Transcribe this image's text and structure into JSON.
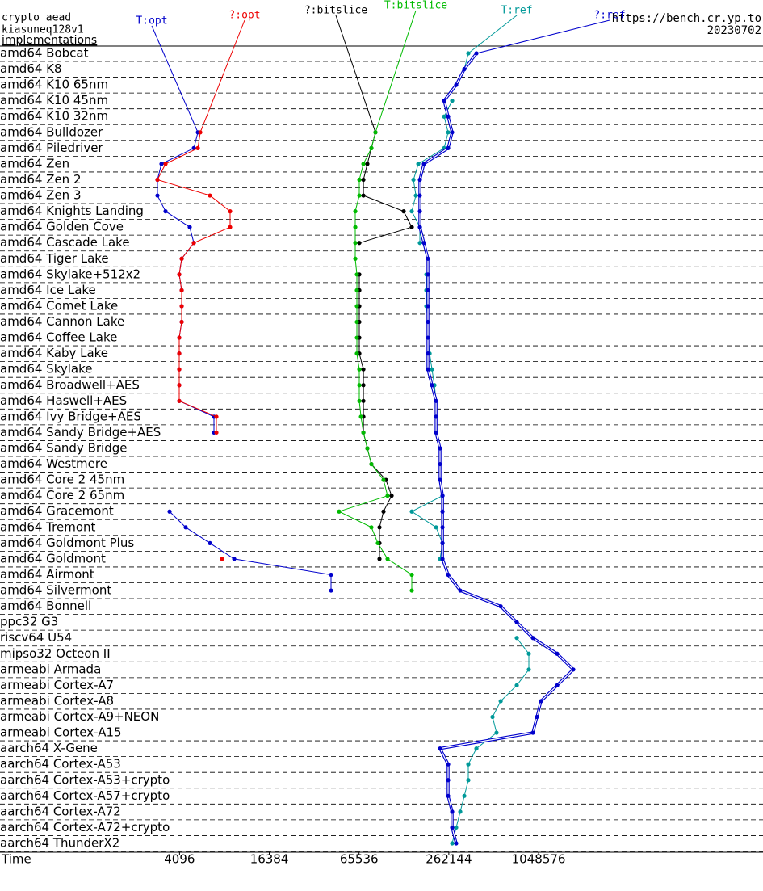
{
  "chart_data": {
    "type": "line",
    "header": [
      "crypto_aead",
      "kiasuneq128v1"
    ],
    "subheader": "implementations",
    "source": "https://bench.cr.yp.to",
    "date": "20230702",
    "x_label": "Time",
    "xscale": "log",
    "xlim": [
      256,
      33554432
    ],
    "xticks": [
      4096,
      16384,
      65536,
      262144,
      1048576
    ],
    "categories": [
      "amd64 Bobcat",
      "amd64 K8",
      "amd64 K10 65nm",
      "amd64 K10 45nm",
      "amd64 K10 32nm",
      "amd64 Bulldozer",
      "amd64 Piledriver",
      "amd64 Zen",
      "amd64 Zen 2",
      "amd64 Zen 3",
      "amd64 Knights Landing",
      "amd64 Golden Cove",
      "amd64 Cascade Lake",
      "amd64 Tiger Lake",
      "amd64 Skylake+512x2",
      "amd64 Ice Lake",
      "amd64 Comet Lake",
      "amd64 Cannon Lake",
      "amd64 Coffee Lake",
      "amd64 Kaby Lake",
      "amd64 Skylake",
      "amd64 Broadwell+AES",
      "amd64 Haswell+AES",
      "amd64 Ivy Bridge+AES",
      "amd64 Sandy Bridge+AES",
      "amd64 Sandy Bridge",
      "amd64 Westmere",
      "amd64 Core 2 45nm",
      "amd64 Core 2 65nm",
      "amd64 Gracemont",
      "amd64 Tremont",
      "amd64 Goldmont Plus",
      "amd64 Goldmont",
      "amd64 Airmont",
      "amd64 Silvermont",
      "amd64 Bonnell",
      "ppc32 G3",
      "riscv64 U54",
      "mipso32 Octeon II",
      "armeabi Armada",
      "armeabi Cortex-A7",
      "armeabi Cortex-A8",
      "armeabi Cortex-A9+NEON",
      "armeabi Cortex-A15",
      "aarch64 X-Gene",
      "aarch64 Cortex-A53",
      "aarch64 Cortex-A53+crypto",
      "aarch64 Cortex-A57+crypto",
      "aarch64 Cortex-A72",
      "aarch64 Cortex-A72+crypto",
      "aarch64 ThunderX2"
    ],
    "series": [
      {
        "name": "T:opt",
        "color": "#0000cc",
        "values": [
          null,
          null,
          null,
          null,
          null,
          5436,
          5108,
          3099,
          2912,
          2912,
          3300,
          4796,
          5108,
          4235,
          4079,
          4235,
          4235,
          4235,
          4079,
          4079,
          4079,
          4079,
          4079,
          6971,
          6971,
          null,
          null,
          null,
          null,
          3512,
          4506,
          6550,
          9527,
          42533,
          42533,
          null,
          null,
          null,
          null,
          null,
          null,
          null,
          null,
          null,
          null,
          null,
          null,
          null,
          null,
          null,
          null
        ]
      },
      {
        "name": "?:opt",
        "color": "#ee0000",
        "values": [
          null,
          null,
          null,
          null,
          null,
          5644,
          5436,
          3300,
          2912,
          6550,
          8946,
          8946,
          5108,
          4235,
          4079,
          4235,
          4235,
          4235,
          4079,
          4079,
          4079,
          4079,
          4079,
          7237,
          7237,
          null,
          null,
          null,
          null,
          null,
          null,
          null,
          7897,
          null,
          null,
          null,
          null,
          null,
          null,
          null,
          null,
          null,
          null,
          null,
          null,
          null,
          null,
          null,
          null,
          null,
          null
        ]
      },
      {
        "name": "?:bitslice",
        "color": "#000000",
        "values": [
          null,
          null,
          null,
          null,
          null,
          84410,
          79298,
          74514,
          70058,
          70058,
          130620,
          147980,
          65809,
          null,
          65809,
          65809,
          65809,
          65809,
          65809,
          65809,
          70058,
          70058,
          70058,
          70058,
          70058,
          74514,
          79298,
          99290,
          108330,
          95620,
          89850,
          89850,
          89850,
          null,
          null,
          null,
          null,
          null,
          null,
          null,
          null,
          null,
          null,
          null,
          null,
          null,
          null,
          null,
          null,
          null,
          null
        ]
      },
      {
        "name": "T:bitslice",
        "color": "#00bb00",
        "values": [
          null,
          null,
          null,
          null,
          null,
          84410,
          79298,
          70058,
          65809,
          65809,
          61834,
          61834,
          61834,
          61834,
          63374,
          63374,
          63374,
          63374,
          63374,
          63374,
          65809,
          65809,
          65809,
          67500,
          70058,
          74514,
          79298,
          95620,
          101780,
          48170,
          79298,
          87620,
          101780,
          147980,
          147980,
          null,
          null,
          null,
          null,
          null,
          null,
          null,
          null,
          null,
          null,
          null,
          null,
          null,
          null,
          null,
          null
        ]
      },
      {
        "name": "T:ref",
        "color": "#009999",
        "values": [
          354160,
          332920,
          null,
          276030,
          243790,
          259390,
          243790,
          163580,
          151780,
          157550,
          147980,
          167640,
          167640,
          null,
          185200,
          185200,
          185200,
          189920,
          189920,
          194770,
          202110,
          209850,
          215220,
          215220,
          215220,
          null,
          null,
          228980,
          237760,
          147980,
          215220,
          237760,
          228980,
          null,
          null,
          null,
          null,
          748680,
          902300,
          902300,
          748680,
          584060,
          514850,
          547880,
          401340,
          354160,
          354160,
          332920,
          312740,
          293600,
          276030
        ]
      },
      {
        "name": "?:ref",
        "color": "#0000cc",
        "style": "double",
        "values": [
          401340,
          332920,
          293600,
          243790,
          259390,
          276030,
          259390,
          178390,
          167640,
          167640,
          167640,
          167640,
          178390,
          189920,
          189920,
          189920,
          189920,
          189920,
          189920,
          189920,
          189920,
          202110,
          215220,
          215220,
          215220,
          228980,
          228980,
          228980,
          237760,
          237760,
          237760,
          237760,
          237760,
          259390,
          312740,
          584060,
          748680,
          960500,
          1396700,
          1792000,
          1396700,
          1087370,
          1022360,
          960500,
          228980,
          259390,
          259390,
          259390,
          276030,
          276030,
          293600
        ]
      }
    ]
  }
}
